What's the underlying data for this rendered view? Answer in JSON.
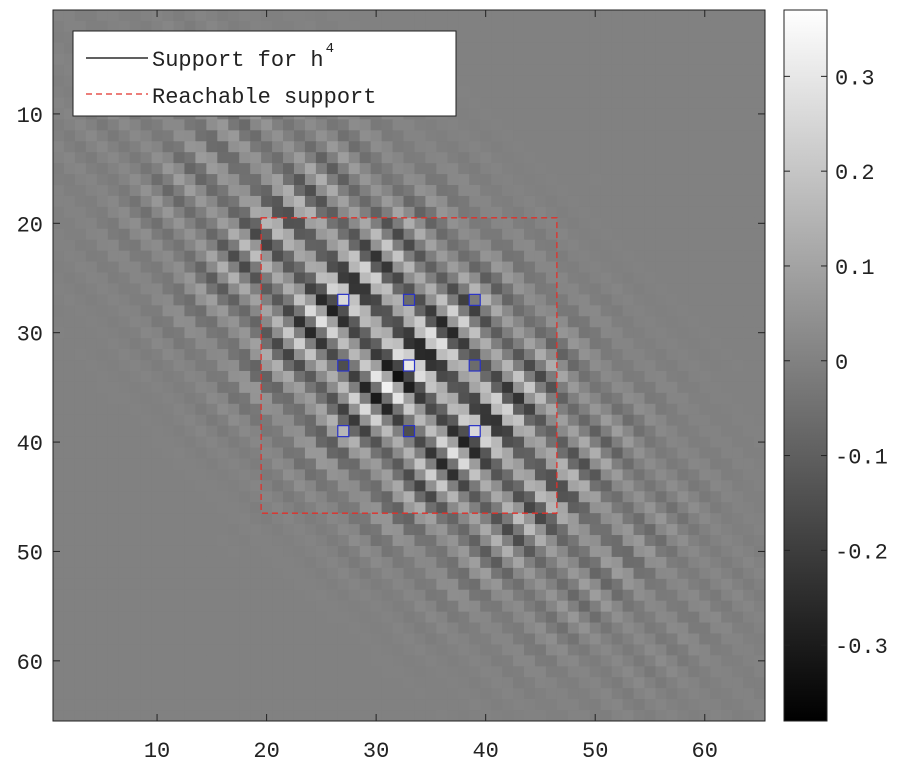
{
  "chart_data": {
    "type": "heatmap",
    "title": "",
    "xlabel": "",
    "ylabel": "",
    "colormap": "gray",
    "grid": false,
    "xlim": [
      0.5,
      65.5
    ],
    "ylim": [
      0.5,
      65.5
    ],
    "y_direction": "reversed",
    "x_ticks": [
      10,
      20,
      30,
      40,
      50,
      60
    ],
    "y_ticks": [
      10,
      20,
      30,
      40,
      50,
      60
    ],
    "colorbar": {
      "range": [
        -0.38,
        0.37
      ],
      "ticks": [
        -0.3,
        -0.2,
        -0.1,
        0,
        0.1,
        0.2,
        0.3
      ],
      "tick_labels": [
        "-0.3",
        "-0.2",
        "-0.1",
        "0",
        "0.1",
        "0.2",
        "0.3"
      ]
    },
    "pattern": {
      "center": [
        33,
        33
      ],
      "orientation_deg": 45,
      "band_period": 3,
      "sigma_along": 16,
      "sigma_across": 7,
      "peak_amplitude": 0.37,
      "min_amplitude": -0.38,
      "background_value": 0
    },
    "reachable_support": {
      "x": [
        19.5,
        46.5
      ],
      "y": [
        19.5,
        46.5
      ]
    },
    "support_points": {
      "x": [
        27,
        33,
        39,
        27,
        33,
        39,
        27,
        33,
        39
      ],
      "y": [
        27,
        27,
        27,
        33,
        33,
        33,
        39,
        39,
        39
      ]
    },
    "legend": {
      "position": "top-left",
      "entries": [
        {
          "label": "Support for h",
          "superscript": "4",
          "style": "solid",
          "color": "#000000"
        },
        {
          "label": "Reachable support",
          "superscript": "",
          "style": "dashed",
          "color": "#e0302a"
        }
      ]
    },
    "colors": {
      "support_marker": "#2a33c8",
      "reachable_support": "#e0302a",
      "axes": "#222222"
    }
  }
}
